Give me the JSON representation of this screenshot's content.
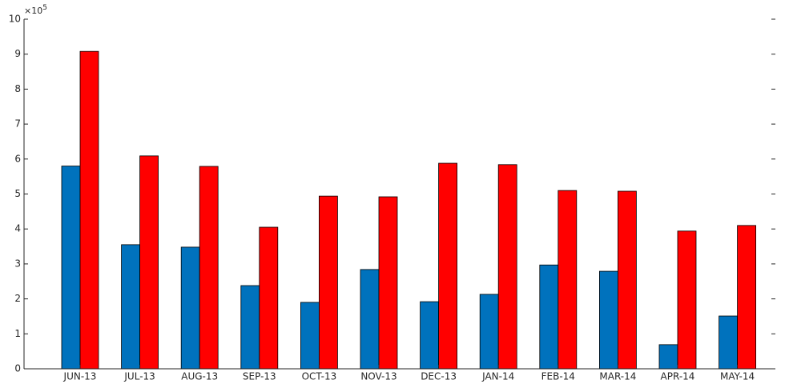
{
  "chart_data": {
    "type": "bar",
    "categories": [
      "JUN-13",
      "JUL-13",
      "AUG-13",
      "SEP-13",
      "OCT-13",
      "NOV-13",
      "DEC-13",
      "JAN-14",
      "FEB-14",
      "MAR-14",
      "APR-14",
      "MAY-14"
    ],
    "series": [
      {
        "color": "#0072bd",
        "values": [
          5.8,
          3.55,
          3.48,
          2.38,
          1.9,
          2.84,
          1.92,
          2.13,
          2.97,
          2.79,
          0.69,
          1.51
        ]
      },
      {
        "color": "#ff0000",
        "values": [
          9.08,
          6.09,
          5.79,
          4.05,
          4.94,
          4.92,
          5.88,
          5.84,
          5.1,
          5.08,
          3.94,
          4.1
        ]
      }
    ],
    "ylim": [
      0,
      10
    ],
    "yticks": [
      0,
      1,
      2,
      3,
      4,
      5,
      6,
      7,
      8,
      9,
      10
    ],
    "y_multiplier": {
      "base": "×10",
      "exponent": "5"
    },
    "grid": false
  }
}
